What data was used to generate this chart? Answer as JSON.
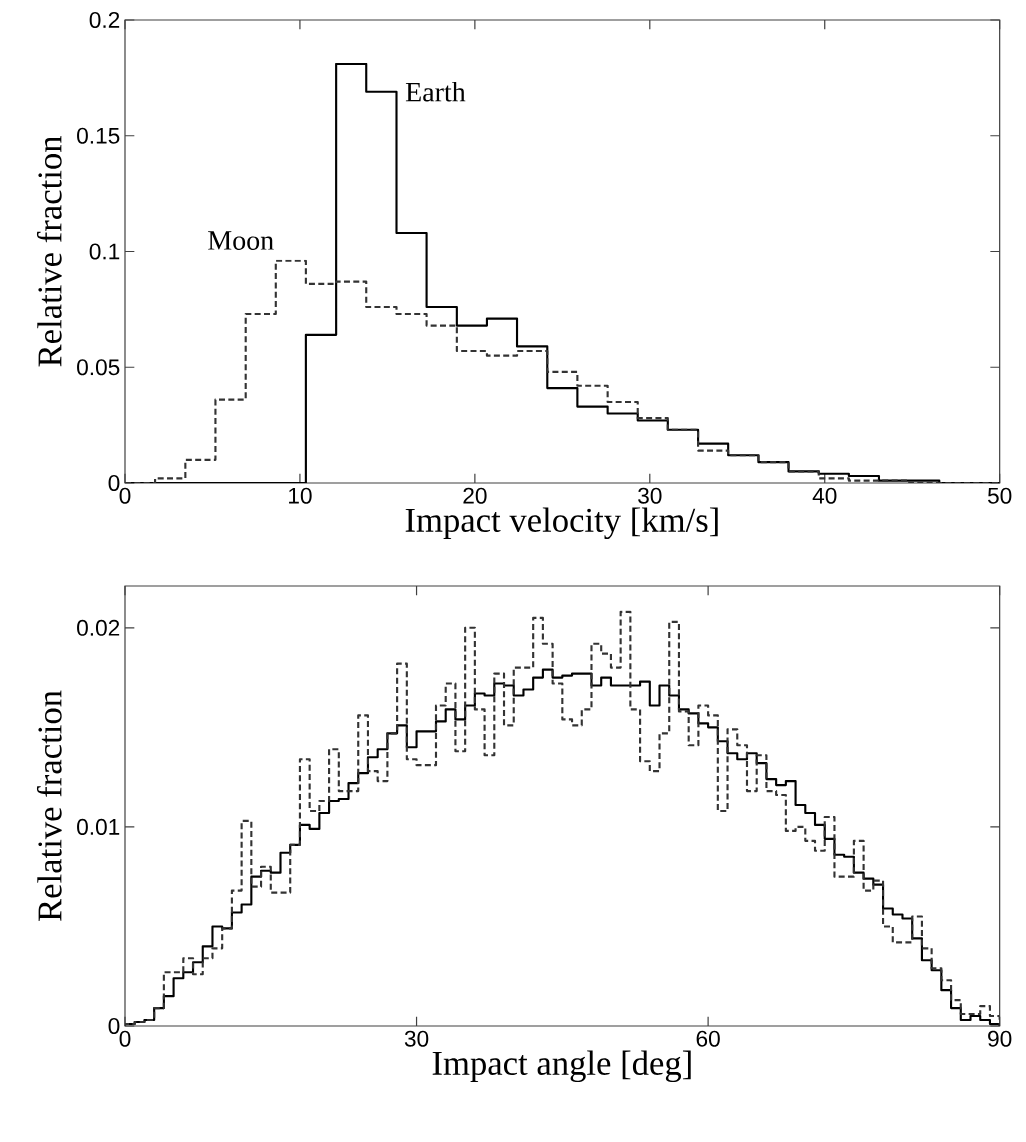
{
  "chart_data": [
    {
      "type": "histogram",
      "xlabel": "Impact velocity [km/s]",
      "ylabel": "Relative fraction",
      "bins": [
        0,
        1.72,
        3.45,
        5.17,
        6.9,
        8.62,
        10.34,
        12.07,
        13.79,
        15.52,
        17.24,
        18.97,
        20.69,
        22.41,
        24.14,
        25.86,
        27.59,
        29.31,
        31.03,
        32.76,
        34.48,
        36.21,
        37.93,
        39.66,
        41.38,
        43.1,
        44.83,
        46.55,
        48.28,
        50
      ],
      "series": [
        {
          "name": "Earth",
          "color": "#000000",
          "line_style": "solid",
          "values": [
            0,
            0,
            0,
            0,
            0,
            0,
            0.064,
            0.181,
            0.169,
            0.108,
            0.076,
            0.068,
            0.071,
            0.059,
            0.041,
            0.033,
            0.03,
            0.027,
            0.023,
            0.017,
            0.012,
            0.009,
            0.005,
            0.004,
            0.003,
            0.001,
            0.001,
            0,
            0
          ]
        },
        {
          "name": "Moon",
          "color": "#333333",
          "line_style": "dashed",
          "values": [
            0,
            0.002,
            0.01,
            0.036,
            0.073,
            0.096,
            0.086,
            0.087,
            0.076,
            0.073,
            0.068,
            0.057,
            0.055,
            0.057,
            0.048,
            0.042,
            0.035,
            0.028,
            0.023,
            0.014,
            0.012,
            0.009,
            0.005,
            0.002,
            0.001,
            0.001,
            0,
            0,
            0
          ]
        }
      ],
      "xlim": [
        0,
        50
      ],
      "xticks": [
        0,
        10,
        20,
        30,
        40,
        50
      ],
      "ylim": [
        0,
        0.2
      ],
      "yticks": [
        0,
        0.05,
        0.1,
        0.15,
        0.2
      ]
    },
    {
      "type": "histogram",
      "xlabel": "Impact angle [deg]",
      "ylabel": "Relative fraction",
      "bins": [
        0,
        1,
        2,
        3,
        4,
        5,
        6,
        7,
        8,
        9,
        10,
        11,
        12,
        13,
        14,
        15,
        16,
        17,
        18,
        19,
        20,
        21,
        22,
        23,
        24,
        25,
        26,
        27,
        28,
        29,
        30,
        31,
        32,
        33,
        34,
        35,
        36,
        37,
        38,
        39,
        40,
        41,
        42,
        43,
        44,
        45,
        46,
        47,
        48,
        49,
        50,
        51,
        52,
        53,
        54,
        55,
        56,
        57,
        58,
        59,
        60,
        61,
        62,
        63,
        64,
        65,
        66,
        67,
        68,
        69,
        70,
        71,
        72,
        73,
        74,
        75,
        76,
        77,
        78,
        79,
        80,
        81,
        82,
        83,
        84,
        85,
        86,
        87,
        88,
        89,
        90
      ],
      "series": [
        {
          "color": "#000000",
          "line_style": "solid",
          "values": [
            0.0001,
            0.0002,
            0.0003,
            0.0009,
            0.0015,
            0.0024,
            0.0027,
            0.0032,
            0.004,
            0.005,
            0.0049,
            0.0057,
            0.0061,
            0.0075,
            0.0078,
            0.0077,
            0.0087,
            0.0091,
            0.0101,
            0.0099,
            0.0107,
            0.0113,
            0.0114,
            0.0122,
            0.0127,
            0.0135,
            0.0139,
            0.0147,
            0.0151,
            0.014,
            0.0148,
            0.0148,
            0.0153,
            0.0159,
            0.0154,
            0.0161,
            0.0167,
            0.0166,
            0.0172,
            0.0171,
            0.0166,
            0.0169,
            0.0175,
            0.0179,
            0.0175,
            0.0176,
            0.0177,
            0.0177,
            0.0171,
            0.0175,
            0.0171,
            0.0171,
            0.0171,
            0.0173,
            0.0161,
            0.0171,
            0.0166,
            0.0159,
            0.0157,
            0.0152,
            0.015,
            0.0143,
            0.0137,
            0.0134,
            0.0137,
            0.0132,
            0.0124,
            0.0121,
            0.0123,
            0.0111,
            0.0107,
            0.0101,
            0.0094,
            0.0086,
            0.0085,
            0.0077,
            0.0074,
            0.0071,
            0.0059,
            0.0056,
            0.0054,
            0.0044,
            0.0033,
            0.0028,
            0.0018,
            0.0009,
            0.0003,
            0.0005,
            0.0003,
            0.0001
          ]
        },
        {
          "color": "#333333",
          "line_style": "dashed",
          "values": [
            0.0001,
            0.0002,
            0.0003,
            0.0009,
            0.0027,
            0.0027,
            0.0034,
            0.0026,
            0.0034,
            0.0039,
            0.0049,
            0.0068,
            0.0103,
            0.007,
            0.008,
            0.0067,
            0.0067,
            0.0091,
            0.0134,
            0.0108,
            0.0113,
            0.0139,
            0.0118,
            0.0118,
            0.0156,
            0.0128,
            0.0123,
            0.0147,
            0.0182,
            0.0134,
            0.0131,
            0.0131,
            0.0161,
            0.0172,
            0.0138,
            0.02,
            0.0159,
            0.0136,
            0.0177,
            0.0151,
            0.018,
            0.018,
            0.0205,
            0.0192,
            0.0172,
            0.0154,
            0.0151,
            0.0159,
            0.0192,
            0.0187,
            0.018,
            0.0208,
            0.0159,
            0.0133,
            0.0128,
            0.0147,
            0.0203,
            0.0158,
            0.0141,
            0.0161,
            0.0156,
            0.0108,
            0.0149,
            0.0141,
            0.0118,
            0.0136,
            0.0118,
            0.0116,
            0.0098,
            0.01,
            0.0093,
            0.0088,
            0.0105,
            0.0075,
            0.0075,
            0.0093,
            0.0068,
            0.0073,
            0.005,
            0.0042,
            0.0042,
            0.0055,
            0.0039,
            0.0029,
            0.0023,
            0.0013,
            0.0006,
            0.0006,
            0.001,
            0.0005
          ]
        }
      ],
      "xlim": [
        0,
        90
      ],
      "xticks": [
        0,
        30,
        60,
        90
      ],
      "ylim": [
        0,
        0.0221
      ],
      "yticks": [
        0,
        0.01,
        0.02
      ]
    }
  ]
}
